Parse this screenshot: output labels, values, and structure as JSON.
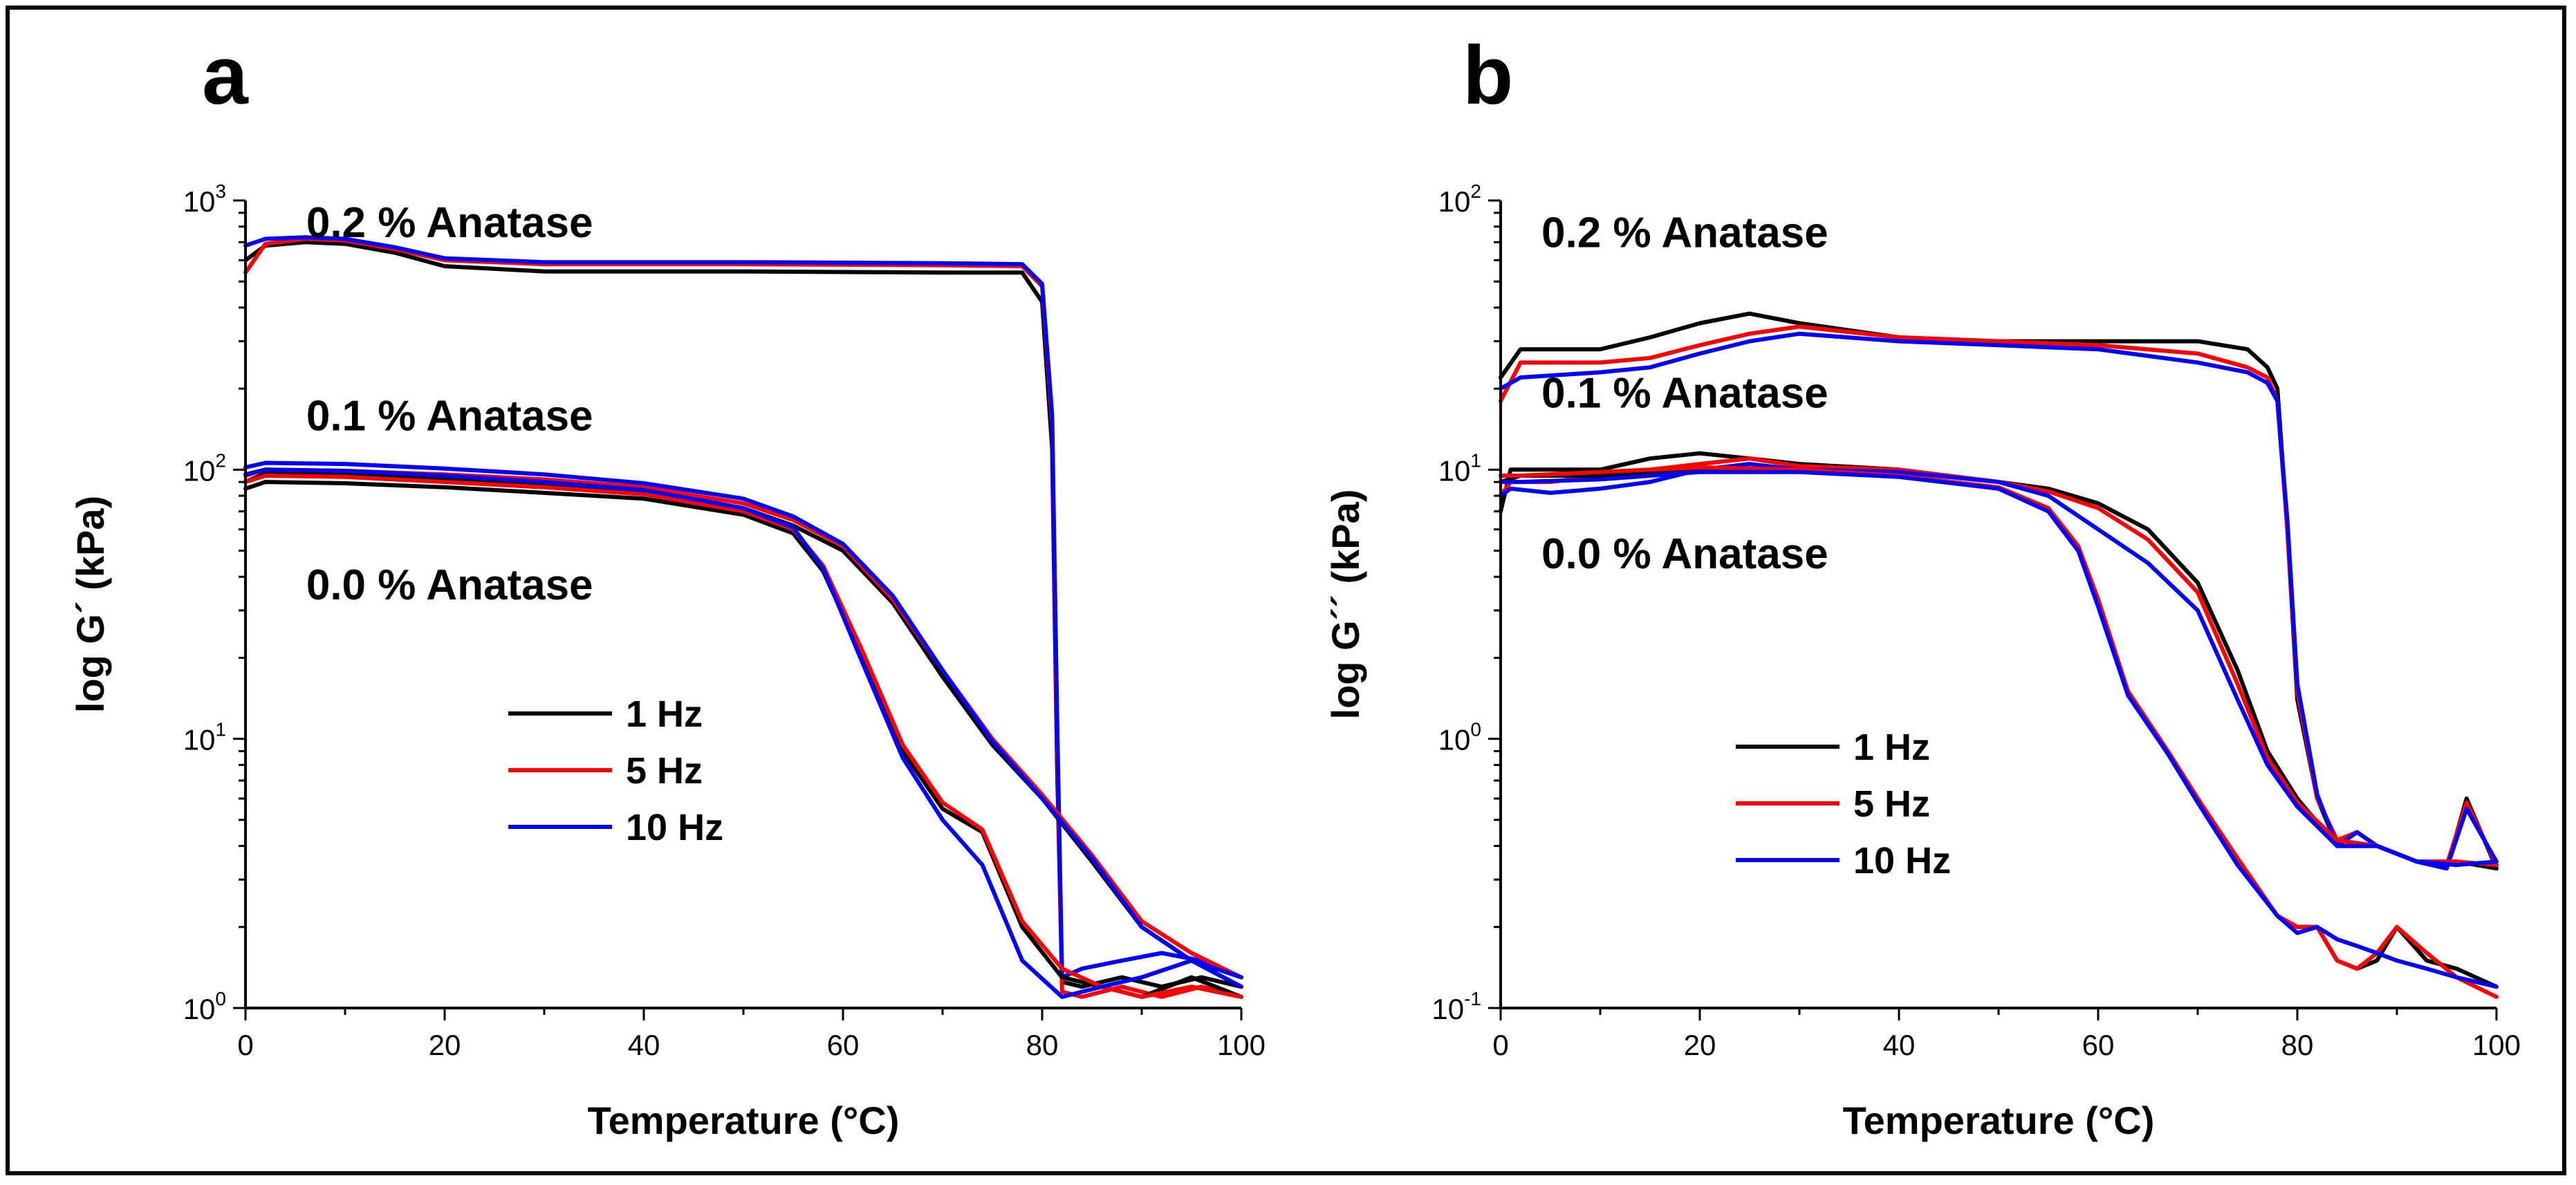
{
  "chart_data": [
    {
      "type": "line",
      "panel": "a",
      "title": "",
      "xlabel": "Temperature (°C)",
      "ylabel": "log G´ (kPa)",
      "xlim": [
        0,
        100
      ],
      "ylim": [
        1,
        1000
      ],
      "yscale": "log",
      "xticks": [
        "0",
        "20",
        "40",
        "60",
        "80",
        "100"
      ],
      "yticks": [
        {
          "base": "10",
          "exp": "0"
        },
        {
          "base": "10",
          "exp": "1"
        },
        {
          "base": "10",
          "exp": "2"
        },
        {
          "base": "10",
          "exp": "3"
        }
      ],
      "annotations": [
        {
          "text": "0.2 % Anatase",
          "x": 20.5,
          "y": 730
        },
        {
          "text": "0.1 % Anatase",
          "x": 20.5,
          "y": 140
        },
        {
          "text": "0.0 % Anatase",
          "x": 20.5,
          "y": 33
        }
      ],
      "legend": {
        "position": "center-left",
        "entries": [
          "1 Hz",
          "5 Hz",
          "10 Hz"
        ]
      },
      "colors": {
        "1 Hz": "#000000",
        "5 Hz": "#ff0000",
        "10 Hz": "#0000ff"
      },
      "series": [
        {
          "name": "1 Hz",
          "group": "0.2 % Anatase",
          "x": [
            0,
            2,
            6,
            10,
            15,
            20,
            30,
            50,
            70,
            78,
            80,
            81,
            81.5,
            82,
            84,
            88,
            92,
            96,
            100
          ],
          "y": [
            600,
            680,
            700,
            690,
            640,
            570,
            545,
            545,
            540,
            540,
            420,
            120,
            8,
            1.25,
            1.2,
            1.3,
            1.2,
            1.3,
            1.2
          ]
        },
        {
          "name": "5 Hz",
          "group": "0.2 % Anatase",
          "x": [
            0,
            2,
            6,
            10,
            15,
            20,
            30,
            50,
            70,
            78,
            80,
            81,
            81.5,
            82,
            84,
            88,
            92,
            96,
            100
          ],
          "y": [
            540,
            690,
            720,
            710,
            660,
            600,
            580,
            580,
            575,
            570,
            480,
            150,
            10,
            1.15,
            1.1,
            1.2,
            1.1,
            1.2,
            1.1
          ]
        },
        {
          "name": "10 Hz",
          "group": "0.2 % Anatase",
          "x": [
            0,
            2,
            6,
            10,
            15,
            20,
            30,
            50,
            70,
            78,
            80,
            81,
            81.5,
            82,
            84,
            88,
            92,
            96,
            100
          ],
          "y": [
            680,
            720,
            730,
            720,
            670,
            610,
            590,
            590,
            585,
            580,
            490,
            160,
            12,
            1.3,
            1.4,
            1.5,
            1.6,
            1.5,
            1.3
          ]
        },
        {
          "name": "1 Hz",
          "group": "0.1 % Anatase",
          "x": [
            0,
            2,
            10,
            20,
            30,
            40,
            50,
            55,
            60,
            65,
            70,
            75,
            80,
            85,
            90,
            95,
            100
          ],
          "y": [
            90,
            97,
            96,
            92,
            88,
            82,
            72,
            62,
            50,
            32,
            17,
            9.5,
            6,
            3.5,
            2.0,
            1.5,
            1.2
          ]
        },
        {
          "name": "5 Hz",
          "group": "0.1 % Anatase",
          "x": [
            0,
            2,
            10,
            20,
            30,
            40,
            50,
            55,
            60,
            65,
            70,
            75,
            80,
            85,
            90,
            95,
            100
          ],
          "y": [
            95,
            100,
            99,
            96,
            92,
            86,
            75,
            65,
            52,
            33,
            18,
            10,
            6.2,
            3.7,
            2.1,
            1.6,
            1.3
          ]
        },
        {
          "name": "10 Hz",
          "group": "0.1 % Anatase",
          "x": [
            0,
            2,
            10,
            20,
            30,
            40,
            50,
            55,
            60,
            65,
            70,
            75,
            80,
            85,
            90,
            95,
            100
          ],
          "y": [
            102,
            106,
            105,
            101,
            96,
            89,
            78,
            67,
            53,
            34,
            18,
            9.8,
            6.0,
            3.6,
            2.0,
            1.5,
            1.2
          ]
        },
        {
          "name": "1 Hz",
          "group": "0.0 % Anatase",
          "x": [
            0,
            2,
            10,
            20,
            30,
            40,
            50,
            55,
            58,
            62,
            66,
            70,
            74,
            78,
            82,
            86,
            90,
            95,
            100
          ],
          "y": [
            85,
            90,
            89,
            86,
            82,
            78,
            68,
            58,
            42,
            20,
            9,
            5.5,
            4.5,
            2.0,
            1.3,
            1.2,
            1.1,
            1.3,
            1.1
          ]
        },
        {
          "name": "5 Hz",
          "group": "0.0 % Anatase",
          "x": [
            0,
            2,
            10,
            20,
            30,
            40,
            50,
            55,
            58,
            62,
            66,
            70,
            74,
            78,
            82,
            86,
            90,
            95,
            100
          ],
          "y": [
            90,
            95,
            94,
            90,
            86,
            81,
            70,
            60,
            44,
            21,
            9.5,
            5.8,
            4.6,
            2.1,
            1.4,
            1.2,
            1.1,
            1.2,
            1.1
          ]
        },
        {
          "name": "10 Hz",
          "group": "0.0 % Anatase",
          "x": [
            0,
            2,
            10,
            20,
            30,
            40,
            50,
            55,
            58,
            62,
            66,
            70,
            74,
            78,
            82,
            86,
            90,
            95,
            100
          ],
          "y": [
            96,
            100,
            99,
            95,
            90,
            84,
            72,
            61,
            43,
            19,
            8.5,
            5.0,
            3.4,
            1.5,
            1.1,
            1.2,
            1.3,
            1.5,
            1.3
          ]
        }
      ]
    },
    {
      "type": "line",
      "panel": "b",
      "title": "",
      "xlabel": "Temperature (°C)",
      "ylabel": "log G´´ (kPa)",
      "xlim": [
        0,
        100
      ],
      "ylim": [
        0.1,
        100
      ],
      "yscale": "log",
      "xticks": [
        "0",
        "20",
        "40",
        "60",
        "80",
        "100"
      ],
      "yticks": [
        {
          "base": "10",
          "exp": "-1"
        },
        {
          "base": "10",
          "exp": "0"
        },
        {
          "base": "10",
          "exp": "1"
        },
        {
          "base": "10",
          "exp": "2"
        }
      ],
      "annotations": [
        {
          "text": "0.2 % Anatase",
          "x": 18.5,
          "y": 67
        },
        {
          "text": "0.1 % Anatase",
          "x": 18.5,
          "y": 17
        },
        {
          "text": "0.0 % Anatase",
          "x": 18.5,
          "y": 4.3
        }
      ],
      "legend": {
        "position": "center-left",
        "entries": [
          "1 Hz",
          "5 Hz",
          "10 Hz"
        ]
      },
      "colors": {
        "1 Hz": "#000000",
        "5 Hz": "#ff0000",
        "10 Hz": "#0000ff"
      },
      "series": [
        {
          "name": "1 Hz",
          "group": "0.2 % Anatase",
          "x": [
            0,
            2,
            10,
            15,
            20,
            25,
            30,
            40,
            50,
            60,
            70,
            75,
            77,
            78,
            79,
            80,
            82,
            84,
            86,
            88,
            92,
            95,
            97,
            100
          ],
          "y": [
            22,
            28,
            28,
            31,
            35,
            38,
            35,
            31,
            30,
            30,
            30,
            28,
            24,
            20,
            6,
            1.4,
            0.6,
            0.4,
            0.45,
            0.4,
            0.35,
            0.33,
            0.6,
            0.33
          ]
        },
        {
          "name": "5 Hz",
          "group": "0.2 % Anatase",
          "x": [
            0,
            2,
            10,
            15,
            20,
            25,
            30,
            40,
            50,
            60,
            70,
            75,
            77,
            78,
            79,
            80,
            82,
            84,
            86,
            88,
            92,
            95,
            97,
            100
          ],
          "y": [
            18,
            25,
            25,
            26,
            29,
            32,
            34,
            31,
            30,
            29,
            27,
            24,
            22,
            18,
            6,
            1.5,
            0.6,
            0.42,
            0.45,
            0.4,
            0.35,
            0.34,
            0.58,
            0.34
          ]
        },
        {
          "name": "10 Hz",
          "group": "0.2 % Anatase",
          "x": [
            0,
            2,
            10,
            15,
            20,
            25,
            30,
            40,
            50,
            60,
            70,
            75,
            77,
            78,
            79,
            80,
            82,
            84,
            86,
            88,
            92,
            95,
            97,
            100
          ],
          "y": [
            20,
            22,
            23,
            24,
            27,
            30,
            32,
            30,
            29,
            28,
            25,
            23,
            21,
            18,
            6.5,
            1.6,
            0.62,
            0.4,
            0.45,
            0.4,
            0.35,
            0.33,
            0.55,
            0.35
          ]
        },
        {
          "name": "1 Hz",
          "group": "0.1 % Anatase",
          "x": [
            0,
            1,
            5,
            10,
            15,
            20,
            25,
            30,
            40,
            50,
            55,
            60,
            65,
            70,
            74,
            77,
            80,
            84,
            88,
            92,
            96,
            100
          ],
          "y": [
            7,
            10,
            10,
            10,
            11,
            11.5,
            11,
            10.5,
            10,
            9,
            8.5,
            7.5,
            6,
            3.8,
            1.8,
            0.9,
            0.6,
            0.4,
            0.4,
            0.35,
            0.35,
            0.33
          ]
        },
        {
          "name": "5 Hz",
          "group": "0.1 % Anatase",
          "x": [
            0,
            1,
            5,
            10,
            15,
            20,
            25,
            30,
            40,
            50,
            55,
            60,
            65,
            70,
            74,
            77,
            80,
            84,
            88,
            92,
            96,
            100
          ],
          "y": [
            8,
            9,
            9,
            9.5,
            10,
            10.5,
            11,
            10.3,
            10,
            9,
            8.3,
            7.2,
            5.5,
            3.5,
            1.6,
            0.85,
            0.58,
            0.42,
            0.4,
            0.35,
            0.35,
            0.34
          ]
        },
        {
          "name": "10 Hz",
          "group": "0.1 % Anatase",
          "x": [
            0,
            1,
            5,
            10,
            15,
            20,
            25,
            30,
            40,
            50,
            55,
            60,
            65,
            70,
            74,
            77,
            80,
            84,
            88,
            92,
            96,
            100
          ],
          "y": [
            8,
            8.5,
            8.2,
            8.5,
            9,
            10,
            10.5,
            10,
            9.8,
            9,
            8,
            6,
            4.5,
            3.0,
            1.4,
            0.8,
            0.56,
            0.4,
            0.4,
            0.35,
            0.34,
            0.35
          ]
        },
        {
          "name": "1 Hz",
          "group": "0.0 % Anatase",
          "x": [
            0,
            2,
            10,
            20,
            30,
            40,
            50,
            55,
            58,
            60,
            63,
            67,
            70,
            74,
            78,
            80,
            82,
            84,
            86,
            88,
            90,
            93,
            96,
            100
          ],
          "y": [
            9,
            9.5,
            9.5,
            10,
            10,
            9.5,
            8.5,
            7,
            5,
            3.2,
            1.5,
            0.9,
            0.6,
            0.35,
            0.22,
            0.2,
            0.2,
            0.15,
            0.14,
            0.15,
            0.2,
            0.15,
            0.14,
            0.12
          ]
        },
        {
          "name": "5 Hz",
          "group": "0.0 % Anatase",
          "x": [
            0,
            2,
            10,
            20,
            30,
            40,
            50,
            55,
            58,
            60,
            63,
            67,
            70,
            74,
            78,
            80,
            82,
            84,
            86,
            88,
            90,
            93,
            96,
            100
          ],
          "y": [
            9.5,
            9.5,
            9.8,
            10.2,
            10,
            9.5,
            8.6,
            7.2,
            5.2,
            3.3,
            1.5,
            0.9,
            0.6,
            0.36,
            0.22,
            0.2,
            0.2,
            0.15,
            0.14,
            0.16,
            0.2,
            0.16,
            0.13,
            0.11
          ]
        },
        {
          "name": "10 Hz",
          "group": "0.0 % Anatase",
          "x": [
            0,
            2,
            10,
            20,
            30,
            40,
            50,
            55,
            58,
            60,
            63,
            67,
            70,
            74,
            78,
            80,
            82,
            84,
            86,
            88,
            90,
            93,
            96,
            100
          ],
          "y": [
            9,
            9,
            9.2,
            9.8,
            9.8,
            9.4,
            8.5,
            7,
            5,
            3.1,
            1.45,
            0.88,
            0.58,
            0.34,
            0.22,
            0.19,
            0.2,
            0.18,
            0.17,
            0.16,
            0.15,
            0.14,
            0.13,
            0.12
          ]
        }
      ]
    }
  ]
}
